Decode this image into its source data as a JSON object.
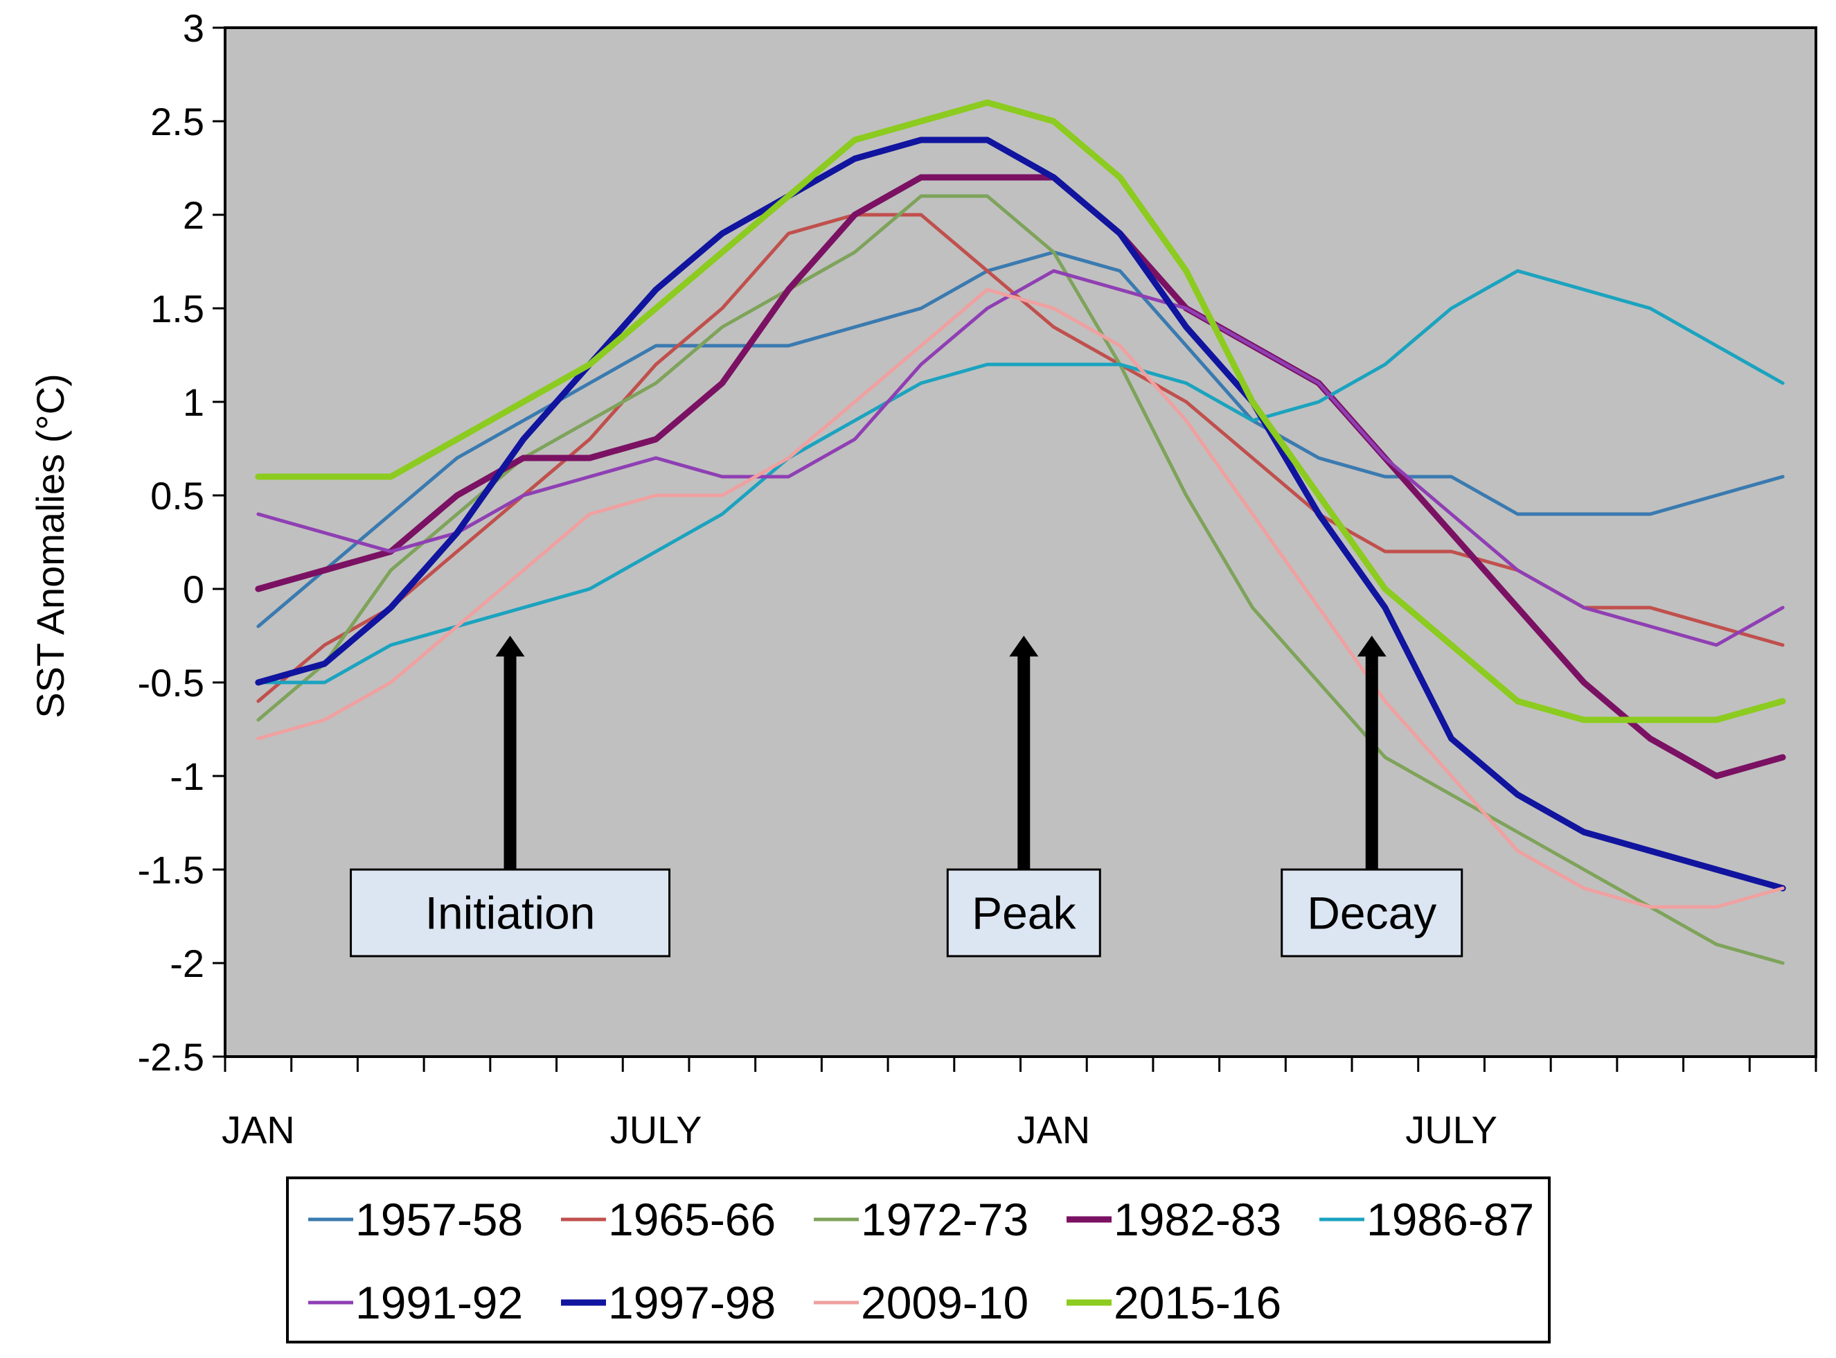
{
  "chart_data": {
    "type": "line",
    "title": "",
    "xlabel": "",
    "ylabel": "SST Anomalies (°C)",
    "ylim": [
      -2.5,
      3
    ],
    "yticks": [
      3,
      2.5,
      2,
      1.5,
      1,
      0.5,
      0,
      -0.5,
      -1,
      -1.5,
      -2,
      -2.5
    ],
    "ytick_labels": [
      "3",
      "2.5",
      "2",
      "1.5",
      "1",
      "0.5",
      "0",
      "-0.5",
      "-1",
      "-1.5",
      "-2",
      "-2.5"
    ],
    "x": [
      1,
      2,
      3,
      4,
      5,
      6,
      7,
      8,
      9,
      10,
      11,
      12,
      13,
      14,
      15,
      16,
      17,
      18,
      19,
      20,
      21,
      22,
      23,
      24
    ],
    "xlim": [
      0.5,
      24.5
    ],
    "month_ticks": [
      {
        "x": 1,
        "label": "JAN"
      },
      {
        "x": 7,
        "label": "JULY"
      },
      {
        "x": 13,
        "label": "JAN"
      },
      {
        "x": 19,
        "label": "JULY"
      }
    ],
    "background": "#c0c0c0",
    "series": [
      {
        "name": "1957-58",
        "color": "#3a7ab0",
        "width": 5,
        "values": [
          -0.2,
          0.1,
          0.4,
          0.7,
          0.9,
          1.1,
          1.3,
          1.3,
          1.3,
          1.4,
          1.5,
          1.7,
          1.8,
          1.7,
          1.3,
          0.9,
          0.7,
          0.6,
          0.6,
          0.4,
          0.4,
          0.4,
          0.5,
          0.6
        ]
      },
      {
        "name": "1965-66",
        "color": "#c0504d",
        "width": 5,
        "values": [
          -0.6,
          -0.3,
          -0.1,
          0.2,
          0.5,
          0.8,
          1.2,
          1.5,
          1.9,
          2.0,
          2.0,
          1.7,
          1.4,
          1.2,
          1.0,
          0.7,
          0.4,
          0.2,
          0.2,
          0.1,
          -0.1,
          -0.1,
          -0.2,
          -0.3
        ]
      },
      {
        "name": "1972-73",
        "color": "#7ea35a",
        "width": 5,
        "values": [
          -0.7,
          -0.4,
          0.1,
          0.4,
          0.7,
          0.9,
          1.1,
          1.4,
          1.6,
          1.8,
          2.1,
          2.1,
          1.8,
          1.2,
          0.5,
          -0.1,
          -0.5,
          -0.9,
          -1.1,
          -1.3,
          -1.5,
          -1.7,
          -1.9,
          -2.0
        ]
      },
      {
        "name": "1982-83",
        "color": "#7b1163",
        "width": 9,
        "values": [
          0.0,
          0.1,
          0.2,
          0.5,
          0.7,
          0.7,
          0.8,
          1.1,
          1.6,
          2.0,
          2.2,
          2.2,
          2.2,
          1.9,
          1.5,
          1.3,
          1.1,
          0.7,
          0.3,
          -0.1,
          -0.5,
          -0.8,
          -1.0,
          -0.9
        ]
      },
      {
        "name": "1986-87",
        "color": "#1ba3bf",
        "width": 5,
        "values": [
          -0.5,
          -0.5,
          -0.3,
          -0.2,
          -0.1,
          0.0,
          0.2,
          0.4,
          0.7,
          0.9,
          1.1,
          1.2,
          1.2,
          1.2,
          1.1,
          0.9,
          1.0,
          1.2,
          1.5,
          1.7,
          1.6,
          1.5,
          1.3,
          1.1
        ]
      },
      {
        "name": "1991-92",
        "color": "#8f3fb3",
        "width": 5,
        "values": [
          0.4,
          0.3,
          0.2,
          0.3,
          0.5,
          0.6,
          0.7,
          0.6,
          0.6,
          0.8,
          1.2,
          1.5,
          1.7,
          1.6,
          1.5,
          1.3,
          1.1,
          0.7,
          0.4,
          0.1,
          -0.1,
          -0.2,
          -0.3,
          -0.1
        ]
      },
      {
        "name": "1997-98",
        "color": "#10149e",
        "width": 9,
        "values": [
          -0.5,
          -0.4,
          -0.1,
          0.3,
          0.8,
          1.2,
          1.6,
          1.9,
          2.1,
          2.3,
          2.4,
          2.4,
          2.2,
          1.9,
          1.4,
          1.0,
          0.4,
          -0.1,
          -0.8,
          -1.1,
          -1.3,
          -1.4,
          -1.5,
          -1.6
        ]
      },
      {
        "name": "2009-10",
        "color": "#f0a0a0",
        "width": 5,
        "values": [
          -0.8,
          -0.7,
          -0.5,
          -0.2,
          0.1,
          0.4,
          0.5,
          0.5,
          0.7,
          1.0,
          1.3,
          1.6,
          1.5,
          1.3,
          0.9,
          0.4,
          -0.1,
          -0.6,
          -1.0,
          -1.4,
          -1.6,
          -1.7,
          -1.7,
          -1.6
        ]
      },
      {
        "name": "2015-16",
        "color": "#8ccb1f",
        "width": 9,
        "values": [
          0.6,
          0.6,
          0.6,
          0.8,
          1.0,
          1.2,
          1.5,
          1.8,
          2.1,
          2.4,
          2.5,
          2.6,
          2.5,
          2.2,
          1.7,
          1.0,
          0.5,
          0.0,
          -0.3,
          -0.6,
          -0.7,
          -0.7,
          -0.7,
          -0.6
        ]
      }
    ],
    "annotations": [
      {
        "label": "Initiation",
        "arrow_x": 4.8,
        "arrow_tip_y": -0.25
      },
      {
        "label": "Peak",
        "arrow_x": 12.55,
        "arrow_tip_y": -0.25
      },
      {
        "label": "Decay",
        "arrow_x": 17.8,
        "arrow_tip_y": -0.25
      }
    ],
    "legend": {
      "placement": "bottom",
      "entries": [
        "1957-58",
        "1965-66",
        "1972-73",
        "1982-83",
        "1986-87",
        "1991-92",
        "1997-98",
        "2009-10",
        "2015-16"
      ]
    }
  }
}
